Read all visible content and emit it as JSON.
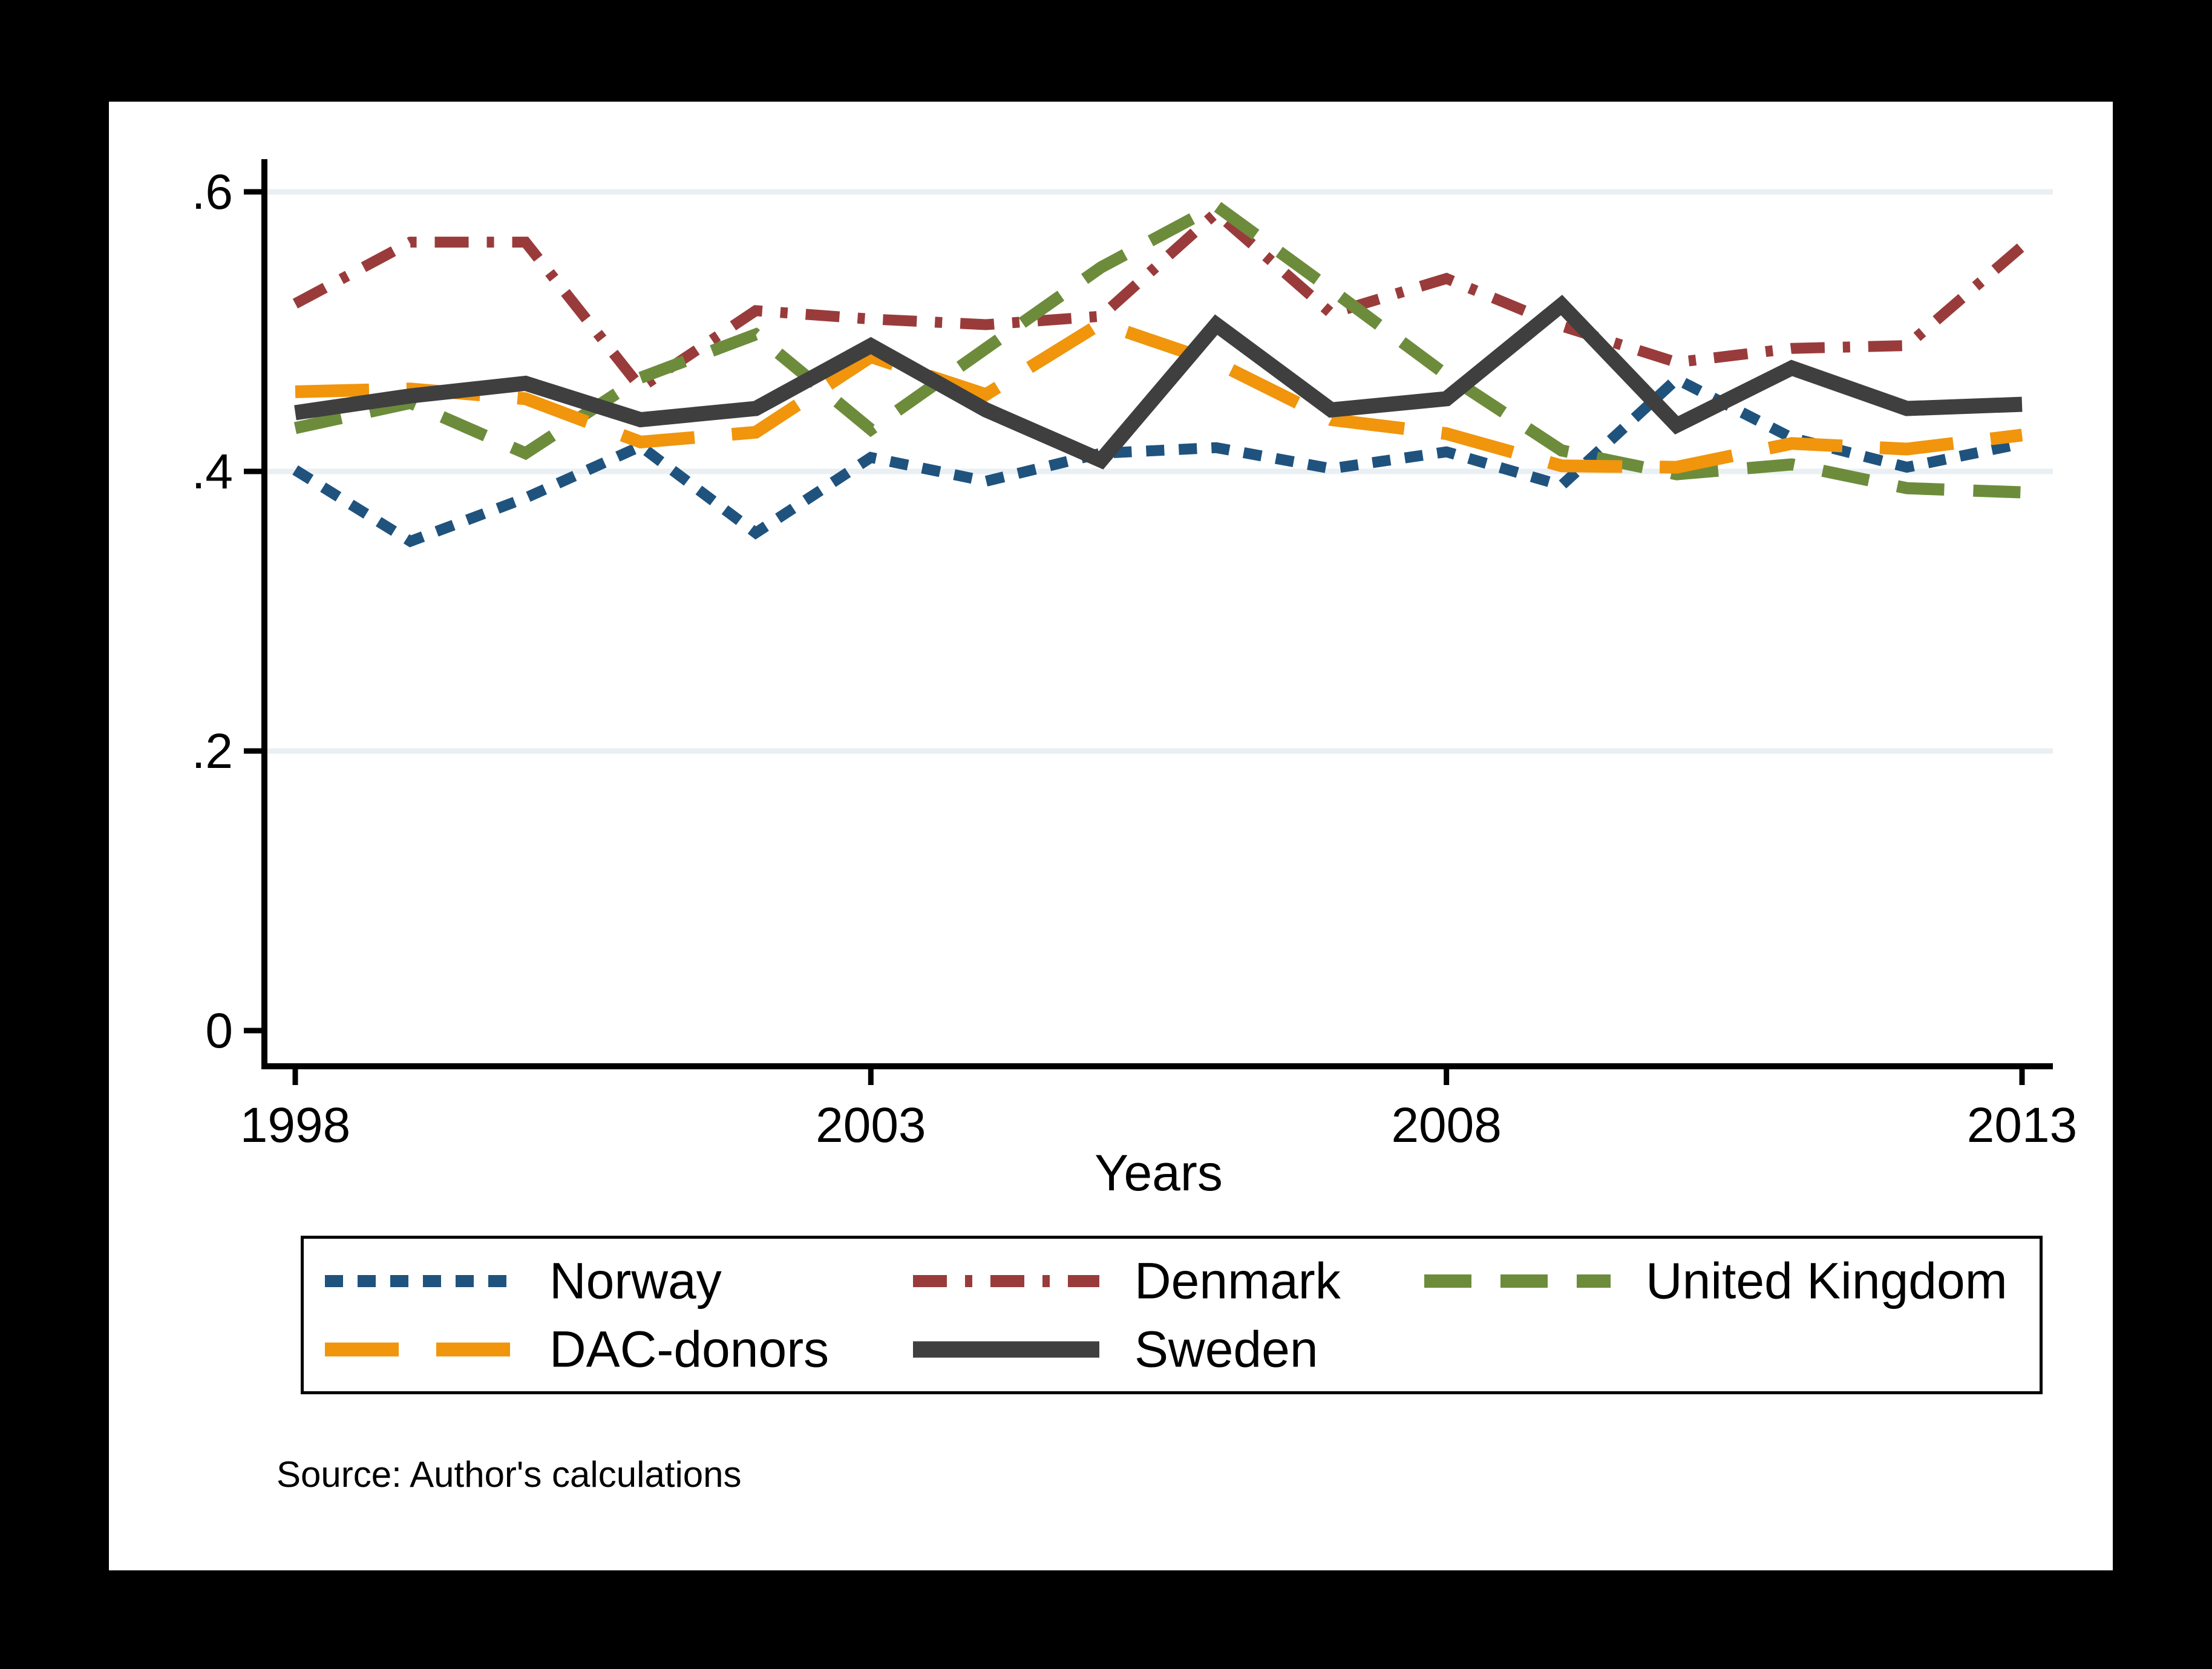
{
  "chart_data": {
    "type": "line",
    "title": "",
    "xlabel": "Years",
    "ylabel": "",
    "x": [
      1998,
      1999,
      2000,
      2001,
      2002,
      2003,
      2004,
      2005,
      2006,
      2007,
      2008,
      2009,
      2010,
      2011,
      2012,
      2013
    ],
    "xlim": [
      1998,
      2013
    ],
    "ylim": [
      0,
      0.62
    ],
    "grid": "horizontal",
    "gridline_values": [
      0.2,
      0.4,
      0.6
    ],
    "gridline_color": "#E9EFF3",
    "x_ticks": [
      {
        "label": "1998",
        "value": 1998
      },
      {
        "label": "2003",
        "value": 2003
      },
      {
        "label": "2008",
        "value": 2008
      },
      {
        "label": "2013",
        "value": 2013
      }
    ],
    "y_ticks": [
      {
        "label": "0",
        "value": 0
      },
      {
        "label": ".2",
        "value": 0.2
      },
      {
        "label": ".4",
        "value": 0.4
      },
      {
        "label": ".6",
        "value": 0.6
      }
    ],
    "series": [
      {
        "name": "Norway",
        "color": "#1F537E",
        "style": "dotted",
        "dash": "30 24",
        "width": 18,
        "values": [
          0.401,
          0.35,
          0.381,
          0.418,
          0.356,
          0.41,
          0.393,
          0.413,
          0.417,
          0.402,
          0.414,
          0.39,
          0.466,
          0.424,
          0.403,
          0.42
        ]
      },
      {
        "name": "Denmark",
        "color": "#9A3B3B",
        "style": "dash-dot",
        "dash": "56 30 12 30",
        "width": 18,
        "values": [
          0.52,
          0.564,
          0.564,
          0.46,
          0.515,
          0.509,
          0.505,
          0.511,
          0.585,
          0.513,
          0.538,
          0.504,
          0.478,
          0.488,
          0.49,
          0.561
        ]
      },
      {
        "name": "United Kingdom",
        "color": "#6C8C3C",
        "style": "dashed",
        "dash": "78 48",
        "width": 20,
        "values": [
          0.431,
          0.449,
          0.413,
          0.467,
          0.498,
          0.43,
          0.488,
          0.546,
          0.59,
          0.53,
          0.469,
          0.415,
          0.398,
          0.405,
          0.388,
          0.385
        ]
      },
      {
        "name": "DAC-donors",
        "color": "#F0950C",
        "style": "long-dash",
        "dash": "122 62",
        "width": 21,
        "values": [
          0.457,
          0.459,
          0.452,
          0.421,
          0.428,
          0.482,
          0.455,
          0.506,
          0.478,
          0.437,
          0.427,
          0.404,
          0.403,
          0.42,
          0.416,
          0.426
        ]
      },
      {
        "name": "Sweden",
        "color": "#3F3F3F",
        "style": "solid",
        "dash": "",
        "width": 25,
        "values": [
          0.442,
          0.454,
          0.463,
          0.437,
          0.445,
          0.49,
          0.444,
          0.408,
          0.505,
          0.444,
          0.452,
          0.519,
          0.433,
          0.474,
          0.445,
          0.448
        ]
      }
    ],
    "legend": {
      "position": "bottom",
      "rows": [
        [
          "Norway",
          "Denmark",
          "United Kingdom"
        ],
        [
          "DAC-donors",
          "Sweden"
        ]
      ]
    },
    "source_note": "Source: Author's calculations"
  }
}
